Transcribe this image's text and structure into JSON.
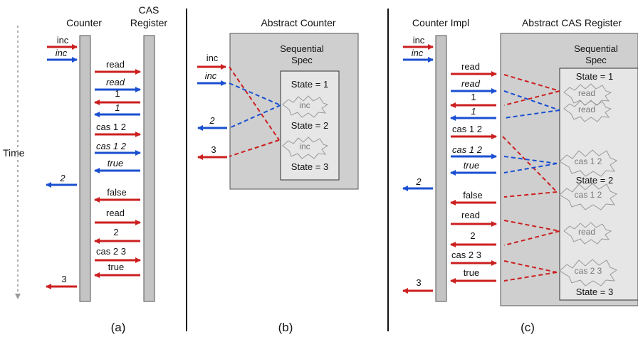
{
  "colors": {
    "red": "#cc1f1f",
    "blue": "#1a4fd1",
    "bar": "#c4c4c4",
    "box": "#cfcfcf",
    "spec_box": "#e6e6e6"
  },
  "time_label": "Time",
  "panels": [
    {
      "caption": "(a)",
      "headers": [
        "Counter",
        "CAS",
        "Register"
      ],
      "messages": [
        "inc",
        "inc",
        "read",
        "read",
        "1",
        "1",
        "cas 1 2",
        "cas 1 2",
        "true",
        "2",
        "false",
        "read",
        "2",
        "cas 2 3",
        "true",
        "3"
      ]
    },
    {
      "caption": "(b)",
      "header": "Abstract Counter",
      "spec_title": [
        "Sequential",
        "Spec"
      ],
      "states": [
        "State = 1",
        "State = 2",
        "State = 3"
      ],
      "ops": [
        "inc",
        "inc"
      ],
      "messages": [
        "inc",
        "inc",
        "2",
        "3"
      ]
    },
    {
      "caption": "(c)",
      "headers": [
        "Counter Impl",
        "Abstract CAS Register"
      ],
      "spec_title": [
        "Sequential",
        "Spec"
      ],
      "states": [
        "State = 1",
        "State = 2",
        "State = 3"
      ],
      "ops": [
        "read",
        "read",
        "cas 1 2",
        "cas 1 2",
        "read",
        "cas 2 3"
      ],
      "messages": [
        "inc",
        "inc",
        "read",
        "read",
        "1",
        "1",
        "cas 1 2",
        "cas 1 2",
        "true",
        "2",
        "false",
        "read",
        "2",
        "cas 2 3",
        "true",
        "3"
      ]
    }
  ]
}
